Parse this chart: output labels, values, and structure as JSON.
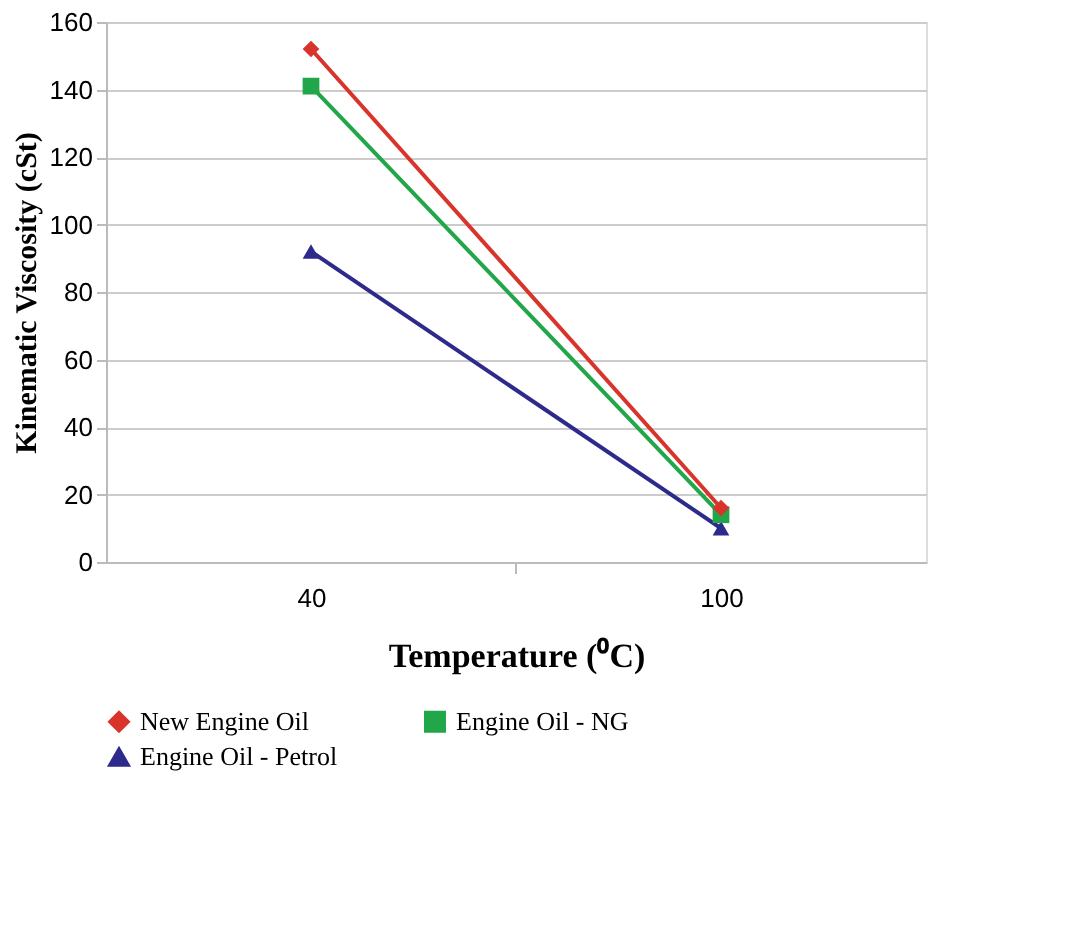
{
  "chart_data": {
    "type": "line",
    "xlabel": "Temperature (⁰C)",
    "ylabel": "Kinematic Viscosity (cSt)",
    "categories": [
      "40",
      "100"
    ],
    "series": [
      {
        "name": "New Engine Oil",
        "color": "#d9342b",
        "marker": "diamond",
        "values": [
          152,
          16
        ]
      },
      {
        "name": "Engine Oil - NG",
        "color": "#22a64a",
        "marker": "square",
        "values": [
          141,
          14
        ]
      },
      {
        "name": "Engine Oil - Petrol",
        "color": "#2e2a8c",
        "marker": "triangle",
        "values": [
          92,
          10
        ]
      }
    ],
    "ylim": [
      0,
      160
    ],
    "yticks": [
      0,
      20,
      40,
      60,
      80,
      100,
      120,
      140,
      160
    ],
    "grid": "y",
    "legend": "bottom",
    "line_style": "solid"
  }
}
